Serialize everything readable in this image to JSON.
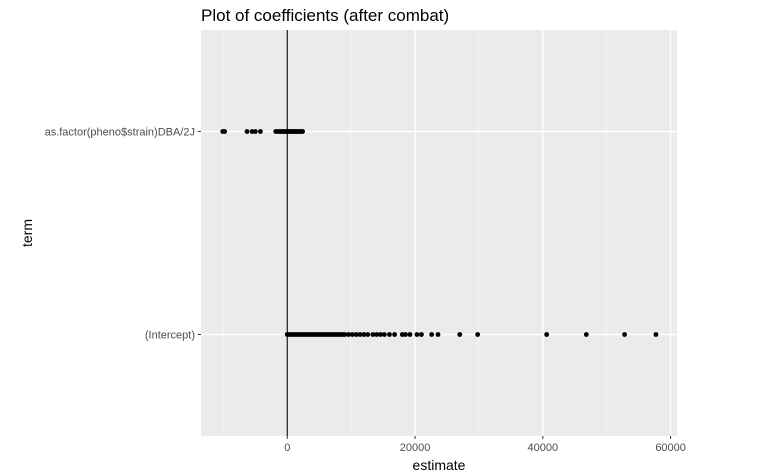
{
  "chart_data": {
    "type": "scatter",
    "title": "Plot of coefficients (after combat)",
    "xlabel": "estimate",
    "ylabel": "term",
    "categories": [
      "(Intercept)",
      "as.factor(pheno$strain)DBA/2J"
    ],
    "x_ticks": [
      0,
      20000,
      40000,
      60000
    ],
    "x_tick_labels": [
      "0",
      "20000",
      "40000",
      "60000"
    ],
    "xlim": [
      -13500,
      61000
    ],
    "grid": true,
    "vline_at": 0,
    "colors": {
      "panel_background": "#ebebeb",
      "grid_major": "#ffffff",
      "grid_minor": "#f4f4f4",
      "point": "#000000",
      "reference_line": "#000000",
      "tick_label": "#4d4d4d"
    },
    "series": [
      {
        "category": "as.factor(pheno$strain)DBA/2J",
        "x": [
          -10100,
          -9800,
          -6300,
          -5500,
          -5000,
          -4200,
          -1800,
          -1500,
          -1200,
          -1000,
          -800,
          -600,
          -400,
          -200,
          0,
          200,
          400,
          600,
          800,
          1000,
          1200,
          1400,
          1600,
          1800,
          2000,
          2200,
          2400
        ]
      },
      {
        "category": "(Intercept)",
        "x": [
          0,
          300,
          600,
          900,
          1200,
          1500,
          1800,
          2100,
          2400,
          2700,
          3000,
          3300,
          3600,
          3900,
          4200,
          4500,
          4800,
          5100,
          5400,
          5700,
          6000,
          6300,
          6600,
          6900,
          7200,
          7500,
          7800,
          8100,
          8400,
          8700,
          9000,
          9600,
          10200,
          10800,
          11400,
          12000,
          12600,
          13400,
          14000,
          14600,
          15200,
          16000,
          16800,
          18000,
          18500,
          19200,
          20300,
          21000,
          22600,
          23600,
          27000,
          29800,
          40600,
          46800,
          52800,
          57700
        ]
      }
    ]
  }
}
